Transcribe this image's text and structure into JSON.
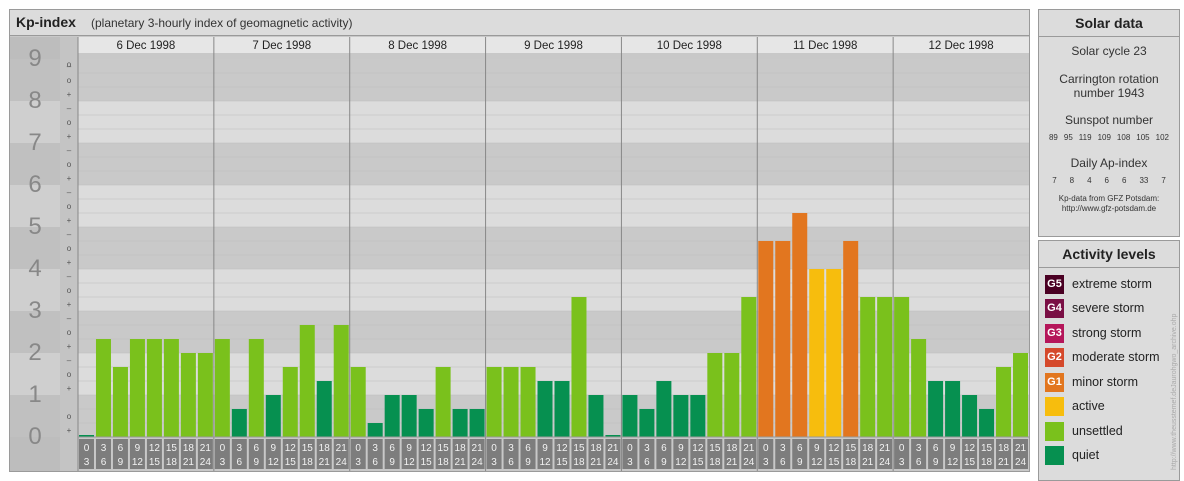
{
  "header": {
    "title": "Kp-index",
    "subtitle": "(planetary 3-hourly index of geomagnetic activity)"
  },
  "chart_data": {
    "type": "bar",
    "title": "Kp-index",
    "subtitle": "(planetary 3-hourly index of geomagnetic activity)",
    "ylim": [
      0,
      9
    ],
    "y_ticks": [
      "0",
      "1",
      "2",
      "3",
      "4",
      "5",
      "6",
      "7",
      "8",
      "9"
    ],
    "minor_tick_labels": [
      "+",
      "o",
      "–"
    ],
    "days": [
      "6 Dec 1998",
      "7 Dec 1998",
      "8 Dec 1998",
      "9 Dec 1998",
      "10 Dec 1998",
      "11 Dec 1998",
      "12 Dec 1998"
    ],
    "interval_labels": [
      [
        "0",
        "3"
      ],
      [
        "3",
        "6"
      ],
      [
        "6",
        "9"
      ],
      [
        "9",
        "12"
      ],
      [
        "12",
        "15"
      ],
      [
        "15",
        "18"
      ],
      [
        "18",
        "21"
      ],
      [
        "21",
        "24"
      ]
    ],
    "values": [
      [
        0,
        2.333,
        1.667,
        2.333,
        2.333,
        2.333,
        2,
        2
      ],
      [
        2.333,
        0.667,
        2.333,
        1,
        1.667,
        2.667,
        1.333,
        2.667
      ],
      [
        1.667,
        0.333,
        1,
        1,
        0.667,
        1.667,
        0.667,
        0.667
      ],
      [
        1.667,
        1.667,
        1.667,
        1.333,
        1.333,
        3.333,
        1,
        0
      ],
      [
        1,
        0.667,
        1.333,
        1,
        1,
        2,
        2,
        3.333
      ],
      [
        4.667,
        4.667,
        5.333,
        4,
        4,
        4.667,
        3.333,
        3.333
      ],
      [
        3.333,
        2.333,
        1.333,
        1.333,
        1,
        0.667,
        1.667,
        2
      ]
    ],
    "levels": [
      {
        "code": "G5",
        "label": "extreme storm",
        "color": "#4a0023"
      },
      {
        "code": "G4",
        "label": "severe storm",
        "color": "#7a0f45"
      },
      {
        "code": "G3",
        "label": "strong storm",
        "color": "#b5165a"
      },
      {
        "code": "G2",
        "label": "moderate storm",
        "color": "#d5492b"
      },
      {
        "code": "G1",
        "label": "minor storm",
        "color": "#e2761f"
      },
      {
        "code": "",
        "label": "active",
        "color": "#f7bd0d"
      },
      {
        "code": "",
        "label": "unsettled",
        "color": "#7ac11c"
      },
      {
        "code": "",
        "label": "quiet",
        "color": "#069050"
      }
    ],
    "grid": true
  },
  "solar": {
    "title": "Solar data",
    "cycle": "Solar cycle 23",
    "rotation_line1": "Carrington rotation",
    "rotation_line2": "number 1943",
    "sunspot_title": "Sunspot number",
    "sunspots": [
      "89",
      "95",
      "119",
      "109",
      "108",
      "105",
      "102"
    ],
    "ap_title": "Daily Ap-index",
    "ap": [
      "7",
      "8",
      "4",
      "6",
      "6",
      "33",
      "7"
    ],
    "credit_line1": "Kp-data from GFZ Potsdam:",
    "credit_line2": "http://www.gfz-potsdam.de"
  },
  "activity": {
    "title": "Activity levels"
  },
  "watermark": "http://www.theusstemef.deJaurohgwo_archive.ohp"
}
